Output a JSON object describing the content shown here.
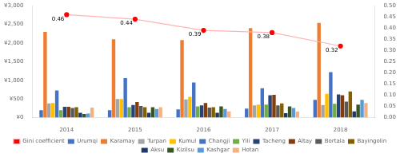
{
  "chart_data": {
    "type": "bar",
    "categories": [
      "2014",
      "2015",
      "2016",
      "2017",
      "2018"
    ],
    "series": [
      {
        "name": "Urumqi",
        "color": "#4472C4",
        "values": [
          200,
          200,
          220,
          240,
          480
        ]
      },
      {
        "name": "Karamay",
        "color": "#ED7D31",
        "values": [
          2300,
          2100,
          2080,
          2400,
          2540
        ]
      },
      {
        "name": "Turpan",
        "color": "#A5A5A5",
        "values": [
          380,
          500,
          490,
          330,
          340
        ]
      },
      {
        "name": "Kumul",
        "color": "#FFC000",
        "values": [
          390,
          500,
          560,
          350,
          640
        ]
      },
      {
        "name": "Changji",
        "color": "#4472C4",
        "values": [
          730,
          1060,
          940,
          790,
          1220
        ]
      },
      {
        "name": "Yili",
        "color": "#70AD47",
        "values": [
          200,
          280,
          300,
          350,
          370
        ]
      },
      {
        "name": "Tacheng",
        "color": "#264478",
        "values": [
          290,
          340,
          330,
          600,
          620
        ]
      },
      {
        "name": "Altay",
        "color": "#843C0C",
        "values": [
          290,
          420,
          390,
          610,
          600
        ]
      },
      {
        "name": "Bortala",
        "color": "#595959",
        "values": [
          260,
          310,
          270,
          330,
          430
        ]
      },
      {
        "name": "Bayingolin",
        "color": "#806000",
        "values": [
          280,
          280,
          280,
          380,
          700
        ]
      },
      {
        "name": "Aksu",
        "color": "#203864",
        "values": [
          130,
          130,
          130,
          120,
          170
        ]
      },
      {
        "name": "Kizilsu",
        "color": "#375623",
        "values": [
          100,
          280,
          300,
          300,
          350
        ]
      },
      {
        "name": "Kashgar",
        "color": "#5B9BD5",
        "values": [
          110,
          230,
          230,
          260,
          480
        ]
      },
      {
        "name": "Hotan",
        "color": "#F4B183",
        "values": [
          270,
          280,
          170,
          160,
          390
        ]
      },
      {
        "name": "Gini coefficient",
        "type": "line",
        "axis": "y2",
        "color": "#FFB3B3",
        "colors": [
          "#FF0000",
          "#FF0000",
          "#FF0000",
          "#FF0000",
          "#FF0000"
        ],
        "marker": "circle",
        "data_labels": true,
        "values": [
          0.46,
          0.44,
          0.39,
          0.38,
          0.32
        ]
      }
    ],
    "ylim": [
      0,
      3000
    ],
    "yticks": [
      {
        "value": 0,
        "label": "¥0"
      },
      {
        "value": 500,
        "label": "¥500"
      },
      {
        "value": 1000,
        "label": "¥1,000"
      },
      {
        "value": 1500,
        "label": "¥1,500"
      },
      {
        "value": 2000,
        "label": "¥2,000"
      },
      {
        "value": 2500,
        "label": "¥2,500"
      },
      {
        "value": 3000,
        "label": "¥3,000"
      }
    ],
    "y2lim": [
      0.0,
      0.5
    ],
    "y2ticks": [
      {
        "value": 0,
        "label": "0.00"
      },
      0.05,
      {
        "value": 0.1,
        "label": "0.10"
      },
      0.15,
      {
        "value": 0.2,
        "label": "0.20"
      },
      0.25,
      {
        "value": 0.3,
        "label": "0.30"
      },
      0.35,
      {
        "value": 0.4,
        "label": "0.40"
      },
      0.45,
      {
        "value": 0.5,
        "label": "0.50"
      }
    ],
    "grid": false,
    "legend": "bottom"
  }
}
